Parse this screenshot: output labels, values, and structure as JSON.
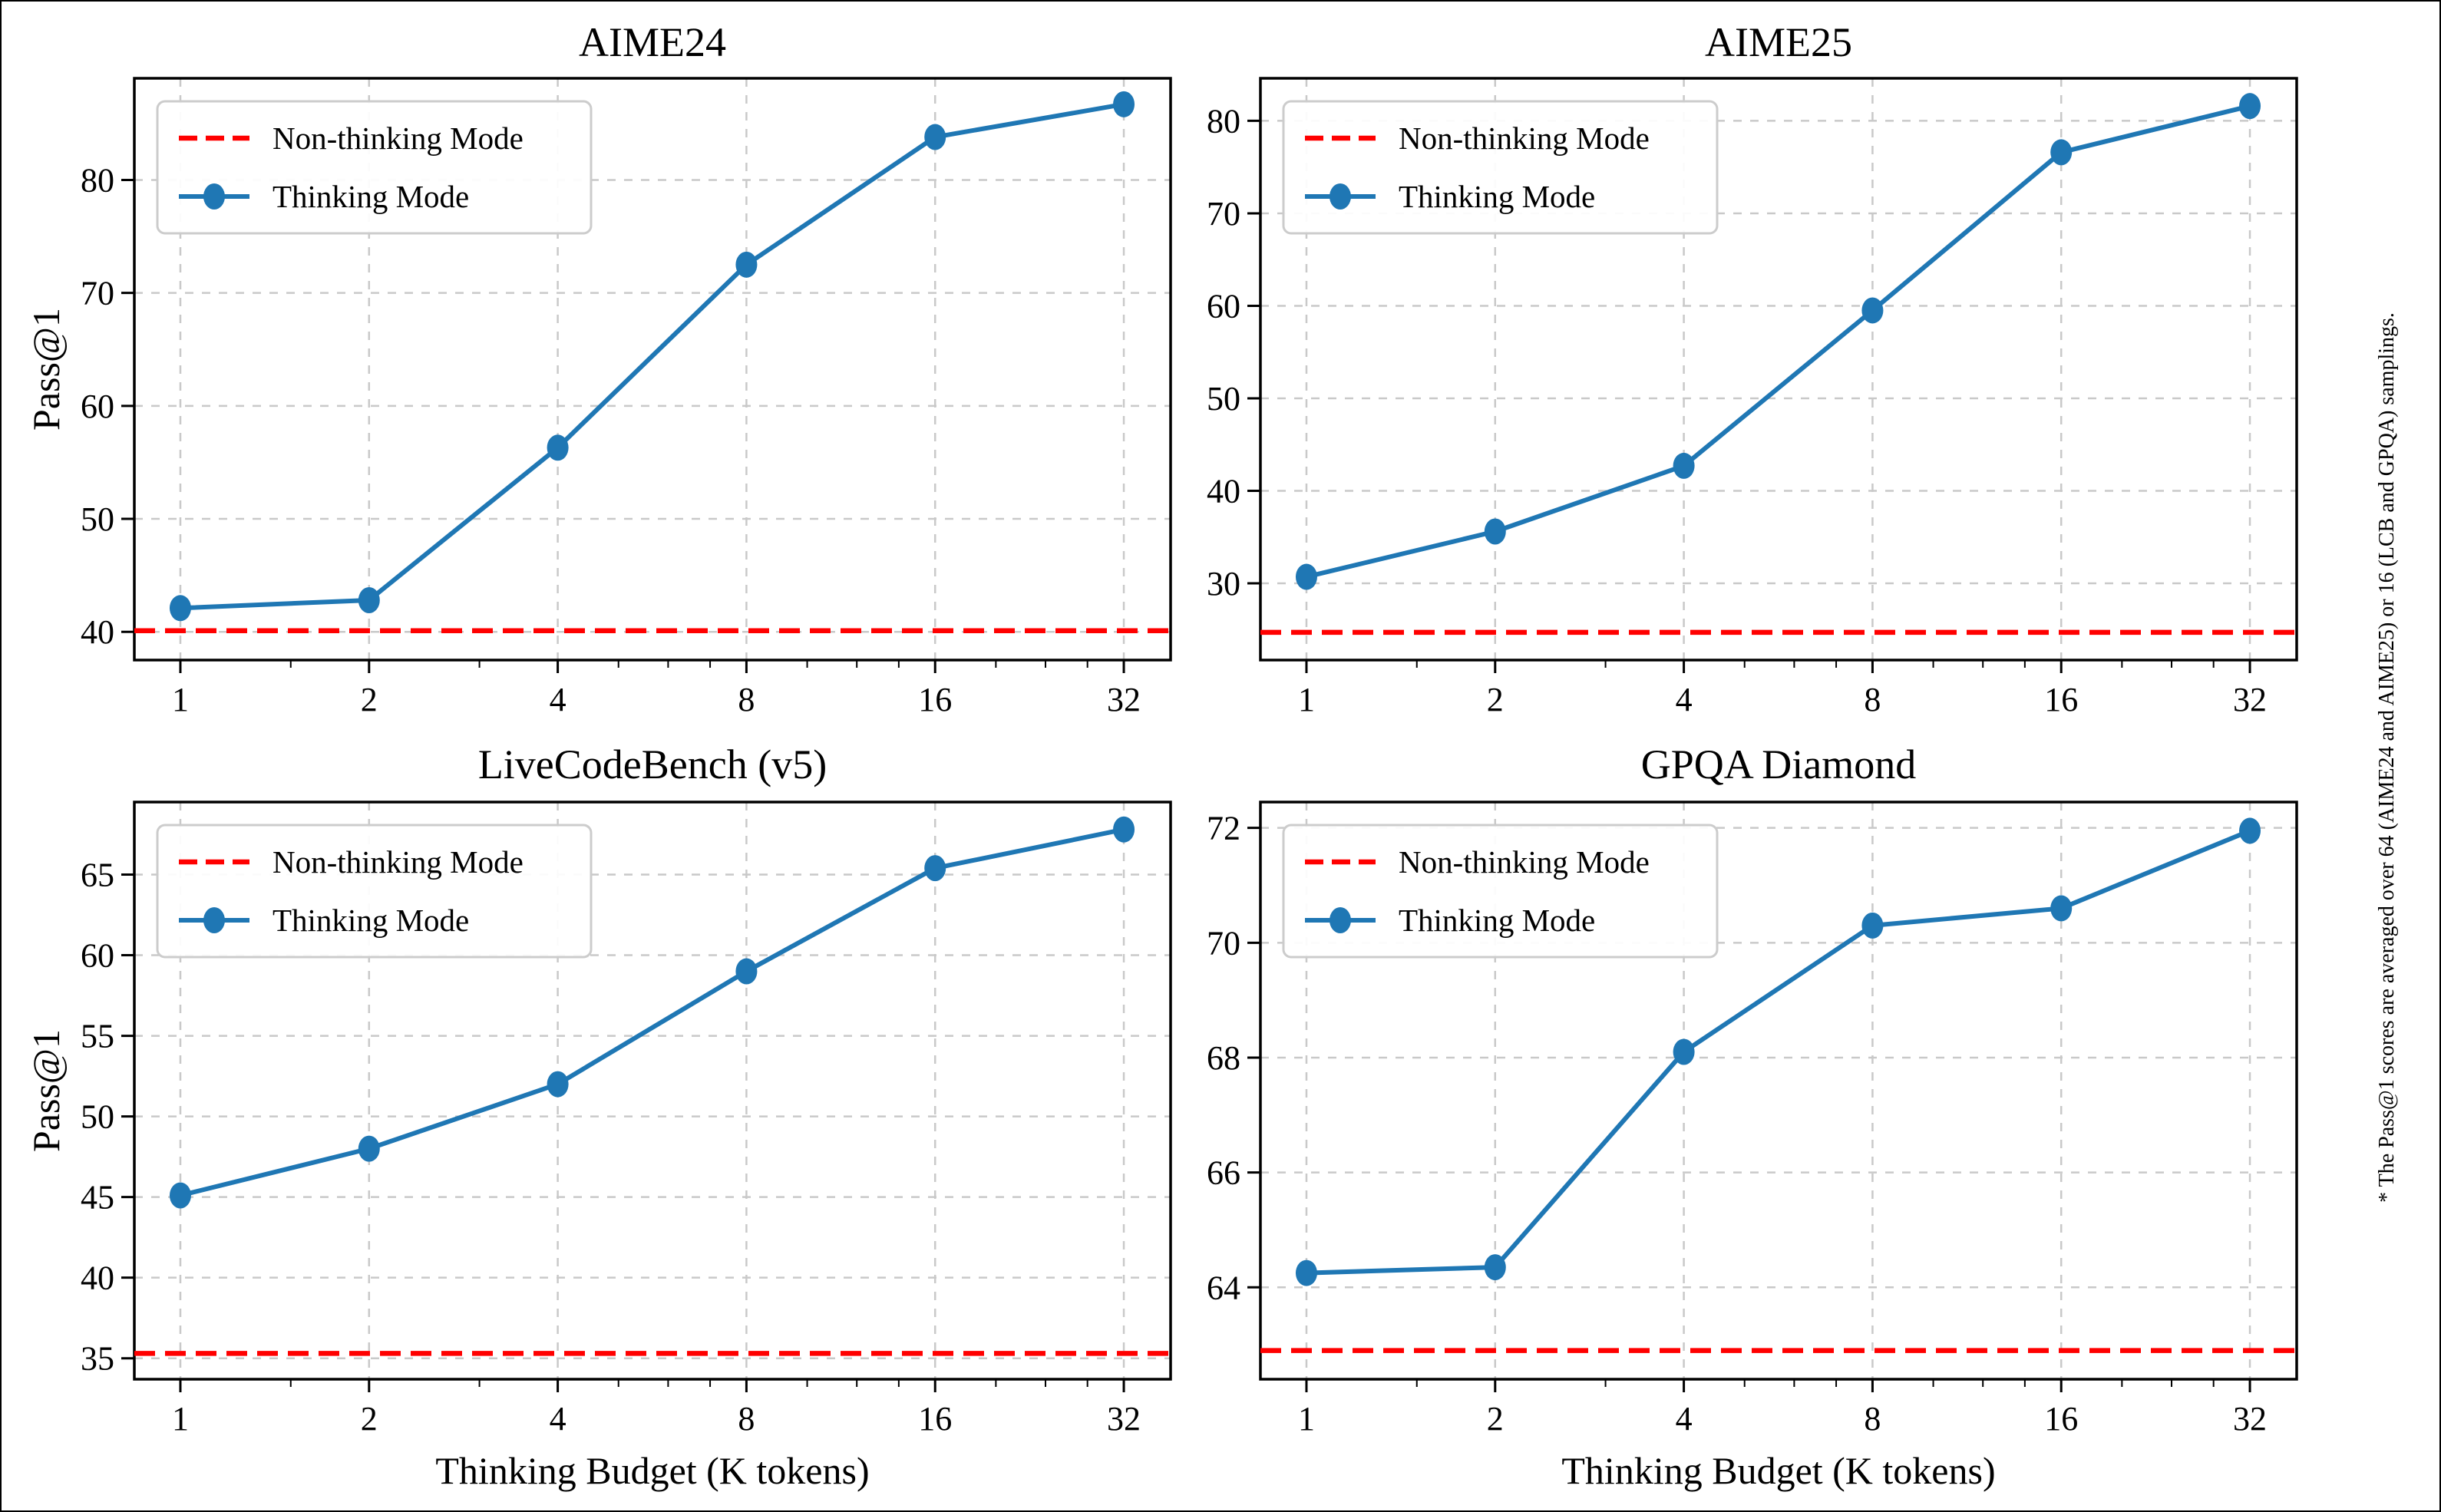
{
  "figure": {
    "footnote": "* The Pass@1 scores are averaged over 64 (AIME24 and AIME25) or 16 (LCB and GPQA) samplings.",
    "legend": {
      "non_thinking": "Non-thinking Mode",
      "thinking": "Thinking Mode"
    },
    "colors": {
      "thinking_line": "#1f77b4",
      "non_thinking_line": "#ff0000",
      "grid": "#c9c9c9",
      "spine": "#000000",
      "legend_border": "#cccccc",
      "background": "#ffffff"
    }
  },
  "chart_data": [
    {
      "type": "line",
      "title": "AIME24",
      "xlabel": "",
      "ylabel": "Pass@1",
      "xscale": "log2",
      "x": [
        1,
        2,
        4,
        8,
        16,
        32
      ],
      "xticklabels": [
        "1",
        "2",
        "4",
        "8",
        "16",
        "32"
      ],
      "series": [
        {
          "name": "Thinking Mode",
          "style": "solid-line-circle-markers",
          "color": "#1f77b4",
          "values": [
            42.1,
            42.8,
            56.3,
            72.5,
            83.8,
            86.7
          ]
        },
        {
          "name": "Non-thinking Mode",
          "style": "dashed-horizontal-baseline",
          "color": "#ff0000",
          "baseline": 40.1
        }
      ],
      "yticks": [
        40,
        50,
        60,
        70,
        80
      ],
      "ylim": [
        37.5,
        89.0
      ],
      "grid": true,
      "legend_position": "upper left"
    },
    {
      "type": "line",
      "title": "AIME25",
      "xlabel": "",
      "ylabel": "",
      "xscale": "log2",
      "x": [
        1,
        2,
        4,
        8,
        16,
        32
      ],
      "xticklabels": [
        "1",
        "2",
        "4",
        "8",
        "16",
        "32"
      ],
      "series": [
        {
          "name": "Thinking Mode",
          "style": "solid-line-circle-markers",
          "color": "#1f77b4",
          "values": [
            30.7,
            35.6,
            42.7,
            59.5,
            76.6,
            81.6
          ]
        },
        {
          "name": "Non-thinking Mode",
          "style": "dashed-horizontal-baseline",
          "color": "#ff0000",
          "baseline": 24.7
        }
      ],
      "yticks": [
        30,
        40,
        50,
        60,
        70,
        80
      ],
      "ylim": [
        21.7,
        84.6
      ],
      "grid": true,
      "legend_position": "upper left"
    },
    {
      "type": "line",
      "title": "LiveCodeBench (v5)",
      "xlabel": "Thinking Budget (K tokens)",
      "ylabel": "Pass@1",
      "xscale": "log2",
      "x": [
        1,
        2,
        4,
        8,
        16,
        32
      ],
      "xticklabels": [
        "1",
        "2",
        "4",
        "8",
        "16",
        "32"
      ],
      "series": [
        {
          "name": "Thinking Mode",
          "style": "solid-line-circle-markers",
          "color": "#1f77b4",
          "values": [
            45.1,
            48.0,
            52.0,
            59.0,
            65.4,
            67.8
          ]
        },
        {
          "name": "Non-thinking Mode",
          "style": "dashed-horizontal-baseline",
          "color": "#ff0000",
          "baseline": 35.3
        }
      ],
      "yticks": [
        35,
        40,
        45,
        50,
        55,
        60,
        65
      ],
      "ylim": [
        33.7,
        69.5
      ],
      "grid": true,
      "legend_position": "upper left"
    },
    {
      "type": "line",
      "title": "GPQA Diamond",
      "xlabel": "Thinking Budget (K tokens)",
      "ylabel": "",
      "xscale": "log2",
      "x": [
        1,
        2,
        4,
        8,
        16,
        32
      ],
      "xticklabels": [
        "1",
        "2",
        "4",
        "8",
        "16",
        "32"
      ],
      "series": [
        {
          "name": "Thinking Mode",
          "style": "solid-line-circle-markers",
          "color": "#1f77b4",
          "values": [
            64.25,
            64.35,
            68.1,
            70.3,
            70.6,
            71.95
          ]
        },
        {
          "name": "Non-thinking Mode",
          "style": "dashed-horizontal-baseline",
          "color": "#ff0000",
          "baseline": 62.9
        }
      ],
      "yticks": [
        64,
        66,
        68,
        70,
        72
      ],
      "ylim": [
        62.4,
        72.45
      ],
      "grid": true,
      "legend_position": "upper left"
    }
  ]
}
